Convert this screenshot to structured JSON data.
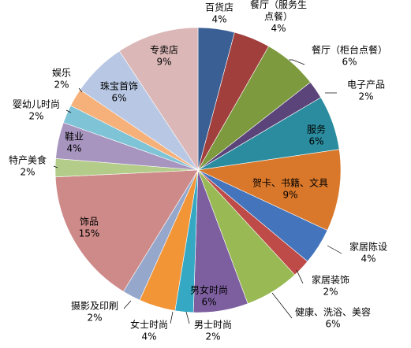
{
  "chart_data": {
    "type": "pie",
    "title": "",
    "legend": "none",
    "slices": [
      {
        "label": "百货店",
        "value": 4,
        "display": "4%",
        "color": "#3A5F95"
      },
      {
        "label": "餐厅（服务生点餐）",
        "value": 4,
        "display": "4%",
        "color": "#A13F3D"
      },
      {
        "label": "餐厅（柜台点餐）",
        "value": 6,
        "display": "6%",
        "color": "#7D9A3E"
      },
      {
        "label": "电子产品",
        "value": 2,
        "display": "2%",
        "color": "#5B4479"
      },
      {
        "label": "服务",
        "value": 6,
        "display": "6%",
        "color": "#2A8C9E"
      },
      {
        "label": "贺卡、书籍、文具",
        "value": 9,
        "display": "9%",
        "color": "#D9782B"
      },
      {
        "label": "家居陈设",
        "value": 4,
        "display": "4%",
        "color": "#4374BC"
      },
      {
        "label": "家居装饰",
        "value": 2,
        "display": "2%",
        "color": "#BE4B48"
      },
      {
        "label": "健康、洗浴、美容",
        "value": 6,
        "display": "6%",
        "color": "#98B954"
      },
      {
        "label": "男女时尚",
        "value": 6,
        "display": "6%",
        "color": "#7D5FA0"
      },
      {
        "label": "男士时尚",
        "value": 2,
        "display": "2%",
        "color": "#35A9C4"
      },
      {
        "label": "女士时尚",
        "value": 4,
        "display": "4%",
        "color": "#F29537"
      },
      {
        "label": "摄影及印刷",
        "value": 2,
        "display": "2%",
        "color": "#95A8CC"
      },
      {
        "label": "饰品",
        "value": 15,
        "display": "15%",
        "color": "#CE8A88"
      },
      {
        "label": "特产美食",
        "value": 2,
        "display": "2%",
        "color": "#B4CC8A"
      },
      {
        "label": "鞋业",
        "value": 4,
        "display": "4%",
        "color": "#A795BF"
      },
      {
        "label": "婴幼儿时尚",
        "value": 2,
        "display": "2%",
        "color": "#7FC3D6"
      },
      {
        "label": "娱乐",
        "value": 2,
        "display": "2%",
        "color": "#F6B07A"
      },
      {
        "label": "珠宝首饰",
        "value": 6,
        "display": "6%",
        "color": "#B8C8E4"
      },
      {
        "label": "专卖店",
        "value": 9,
        "display": "9%",
        "color": "#DBB7B7"
      }
    ],
    "label_lines": [
      [
        "百货店",
        "4%"
      ],
      [
        "餐厅（服务生",
        "点餐）",
        "4%"
      ],
      [
        "餐厅（柜台点餐）",
        "6%"
      ],
      [
        "电子产品",
        "2%"
      ],
      [
        "服务",
        "6%"
      ],
      [
        "贺卡、书籍、文具",
        "9%"
      ],
      [
        "家居陈设",
        "4%"
      ],
      [
        "家居装饰",
        "2%"
      ],
      [
        "健康、洗浴、美容",
        "6%"
      ],
      [
        "男女时尚",
        "6%"
      ],
      [
        "男士时尚",
        "2%"
      ],
      [
        "女士时尚",
        "4%"
      ],
      [
        "摄影及印刷",
        "2%"
      ],
      [
        "饰品",
        "15%"
      ],
      [
        "特产美食",
        "2%"
      ],
      [
        "鞋业",
        "4%"
      ],
      [
        "婴幼儿时尚",
        "2%"
      ],
      [
        "娱乐",
        "2%"
      ],
      [
        "珠宝首饰",
        "6%"
      ],
      [
        "专卖店",
        "9%"
      ]
    ]
  }
}
